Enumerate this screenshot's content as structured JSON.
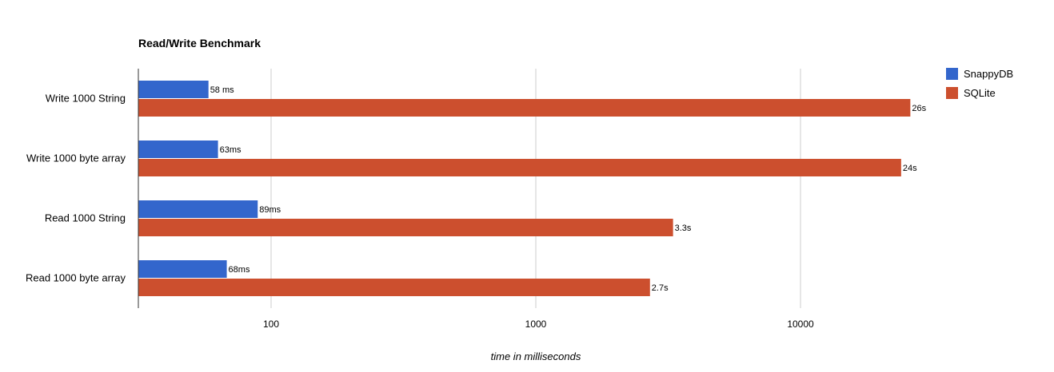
{
  "chart_data": {
    "type": "bar",
    "orientation": "horizontal",
    "title": "Read/Write Benchmark",
    "xlabel": "time in milliseconds",
    "ylabel": "",
    "x_scale": "log",
    "xlim": [
      30,
      60000
    ],
    "x_ticks": [
      100,
      1000,
      10000
    ],
    "x_tick_labels": [
      "100",
      "1000",
      "10000"
    ],
    "grid": true,
    "legend_position": "right",
    "categories": [
      "Write 1000 String",
      "Write 1000 byte array",
      "Read 1000 String",
      "Read 1000 byte array"
    ],
    "series": [
      {
        "name": "SnappyDB",
        "color": "#3366cc",
        "values": [
          58,
          63,
          89,
          68
        ],
        "labels": [
          "58 ms",
          "63ms",
          "89ms",
          "68ms"
        ]
      },
      {
        "name": "SQLite",
        "color": "#cc4f2e",
        "values": [
          26000,
          24000,
          3300,
          2700
        ],
        "labels": [
          "26s",
          "24s",
          "3.3s",
          "2.7s"
        ]
      }
    ]
  }
}
